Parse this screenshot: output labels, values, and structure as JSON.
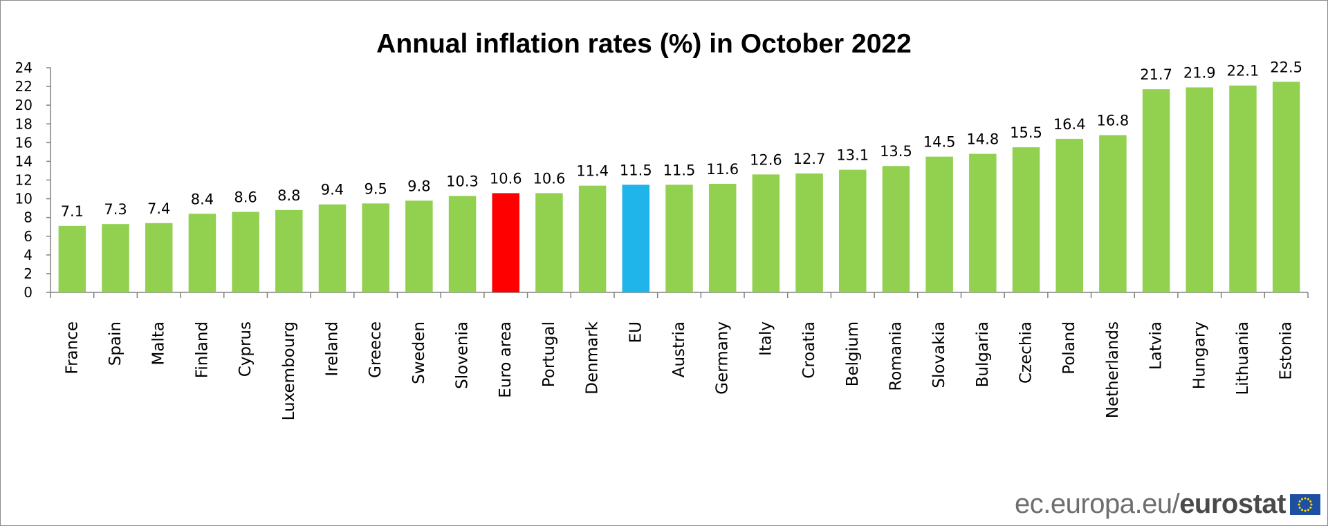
{
  "chart_data": {
    "type": "bar",
    "title": "Annual inflation rates (%) in October 2022",
    "xlabel": "",
    "ylabel": "",
    "ylim": [
      0,
      24
    ],
    "yticks": [
      0,
      2,
      4,
      6,
      8,
      10,
      12,
      14,
      16,
      18,
      20,
      22,
      24
    ],
    "grid": false,
    "categories": [
      "France",
      "Spain",
      "Malta",
      "Finland",
      "Cyprus",
      "Luxembourg",
      "Ireland",
      "Greece",
      "Sweden",
      "Slovenia",
      "Euro area",
      "Portugal",
      "Denmark",
      "EU",
      "Austria",
      "Germany",
      "Italy",
      "Croatia",
      "Belgium",
      "Romania",
      "Slovakia",
      "Bulgaria",
      "Czechia",
      "Poland",
      "Netherlands",
      "Latvia",
      "Hungary",
      "Lithuania",
      "Estonia"
    ],
    "values": [
      7.1,
      7.3,
      7.4,
      8.4,
      8.6,
      8.8,
      9.4,
      9.5,
      9.8,
      10.3,
      10.6,
      10.6,
      11.4,
      11.5,
      11.5,
      11.6,
      12.6,
      12.7,
      13.1,
      13.5,
      14.5,
      14.8,
      15.5,
      16.4,
      16.8,
      21.7,
      21.9,
      22.1,
      22.5
    ],
    "colors": {
      "default": "#92d050",
      "Euro area": "#ff0000",
      "EU": "#1fb4ea"
    }
  },
  "footer": {
    "site": "ec.europa.eu/",
    "brand": "eurostat",
    "flag_icon": "eu-flag-icon"
  }
}
